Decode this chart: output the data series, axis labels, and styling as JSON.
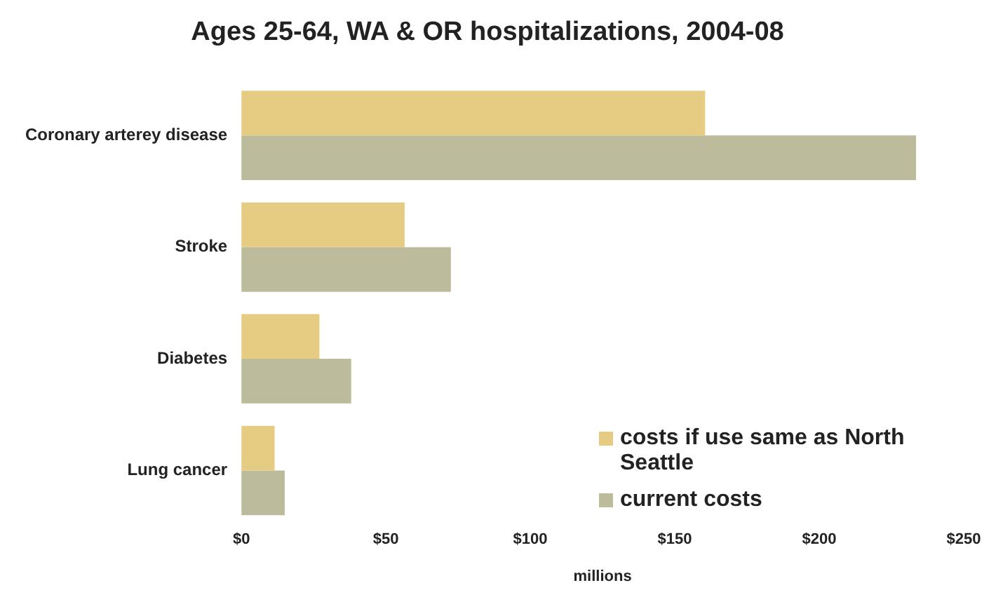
{
  "chart_data": {
    "type": "bar",
    "orientation": "horizontal",
    "title": "Ages 25-64, WA & OR hospitalizations, 2004-08",
    "xlabel": "millions",
    "categories": [
      "Coronary arterey disease",
      "Stroke",
      "Diabetes",
      "Lung cancer"
    ],
    "series": [
      {
        "name": "costs if use same as North Seattle",
        "color": "#e6cb82",
        "values": [
          160.5,
          56.5,
          27,
          11.5
        ]
      },
      {
        "name": "current costs",
        "color": "#bcbb9c",
        "values": [
          233.5,
          72.5,
          38,
          15
        ]
      }
    ],
    "xlim": [
      0,
      250
    ],
    "xticks": [
      {
        "value": 0,
        "label": "$0"
      },
      {
        "value": 50,
        "label": "$50"
      },
      {
        "value": 100,
        "label": "$100"
      },
      {
        "value": 150,
        "label": "$150"
      },
      {
        "value": 200,
        "label": "$200"
      },
      {
        "value": 250,
        "label": "$250"
      }
    ],
    "grid": false,
    "legend": "bottom right"
  }
}
